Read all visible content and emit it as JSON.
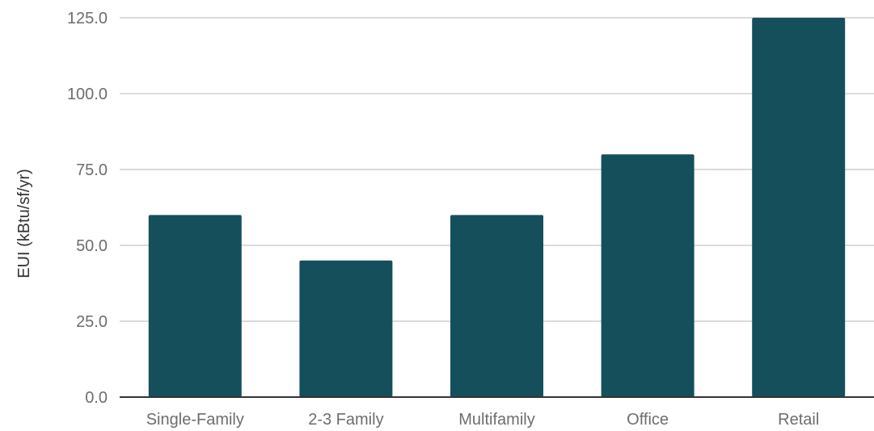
{
  "colors": {
    "bar": "#164f5c",
    "grid": "#cfcfcf",
    "axis": "#333333",
    "tick_text": "#6d6d6d"
  },
  "chart_data": {
    "type": "bar",
    "categories": [
      "Single-Family",
      "2-3 Family",
      "Multifamily",
      "Office",
      "Retail"
    ],
    "values": [
      60,
      45,
      60,
      80,
      125
    ],
    "ylabel": "EUI (kBtu/sf/yr)",
    "xlabel": "",
    "ylim": [
      0,
      125
    ],
    "yticks": [
      "0.0",
      "25.0",
      "50.0",
      "75.0",
      "100.0",
      "125.0"
    ],
    "grid": true,
    "legend": "none"
  }
}
